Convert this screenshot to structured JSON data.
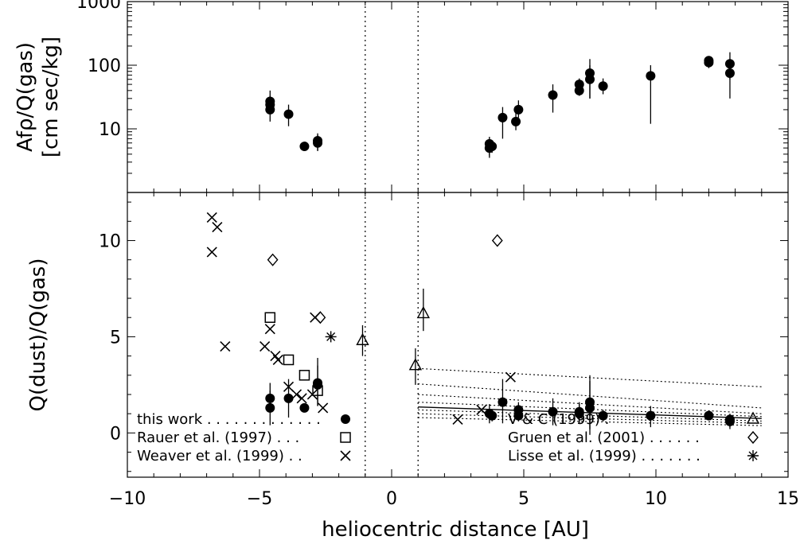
{
  "chart_data": [
    {
      "panel": "top",
      "type": "scatter",
      "xlabel": "",
      "ylabel": [
        "Afρ/Q(gas)",
        "[cm sec/kg]"
      ],
      "xlim": [
        -10,
        15
      ],
      "ylim": [
        1,
        1000
      ],
      "yscale": "log",
      "yticks": [
        {
          "v": 10,
          "label": "10"
        },
        {
          "v": 100,
          "label": "100"
        },
        {
          "v": 1000,
          "label": "1000"
        }
      ],
      "series": [
        {
          "marker": "filled-circle",
          "points": [
            {
              "x": -4.6,
              "y": 27,
              "lo": 19,
              "hi": 40
            },
            {
              "x": -4.6,
              "y": 24,
              "lo": 17,
              "hi": 33
            },
            {
              "x": -4.6,
              "y": 20,
              "lo": 13,
              "hi": 30
            },
            {
              "x": -3.9,
              "y": 17,
              "lo": 11,
              "hi": 24
            },
            {
              "x": -3.3,
              "y": 5.3,
              "lo": 5.0,
              "hi": 5.7
            },
            {
              "x": -2.8,
              "y": 6.5,
              "lo": 4.5,
              "hi": 8.5
            },
            {
              "x": -2.8,
              "y": 6.0,
              "lo": 4.5,
              "hi": 8.0
            },
            {
              "x": 3.7,
              "y": 5.8,
              "lo": 3.5,
              "hi": 7.5
            },
            {
              "x": 3.8,
              "y": 5.3,
              "lo": 4.2,
              "hi": 6.5
            },
            {
              "x": 3.7,
              "y": 5.0,
              "lo": 3.8,
              "hi": 6.5
            },
            {
              "x": 4.2,
              "y": 15,
              "lo": 7,
              "hi": 22
            },
            {
              "x": 4.8,
              "y": 20,
              "lo": 15,
              "hi": 28
            },
            {
              "x": 4.7,
              "y": 13,
              "lo": 9.5,
              "hi": 18
            },
            {
              "x": 6.1,
              "y": 34,
              "lo": 18,
              "hi": 50
            },
            {
              "x": 7.1,
              "y": 50,
              "lo": 37,
              "hi": 62
            },
            {
              "x": 7.1,
              "y": 40,
              "lo": 33,
              "hi": 55
            },
            {
              "x": 7.5,
              "y": 75,
              "lo": 30,
              "hi": 125
            },
            {
              "x": 7.5,
              "y": 60,
              "lo": 30,
              "hi": 100
            },
            {
              "x": 8.0,
              "y": 47,
              "lo": 35,
              "hi": 62
            },
            {
              "x": 9.8,
              "y": 68,
              "lo": 12,
              "hi": 100
            },
            {
              "x": 12.0,
              "y": 118,
              "lo": 95,
              "hi": 135
            },
            {
              "x": 12.0,
              "y": 110,
              "lo": 90,
              "hi": 125
            },
            {
              "x": 12.8,
              "y": 105,
              "lo": 60,
              "hi": 160
            },
            {
              "x": 12.8,
              "y": 75,
              "lo": 30,
              "hi": 125
            }
          ]
        }
      ],
      "vlines": [
        -1,
        1
      ]
    },
    {
      "panel": "bottom",
      "type": "scatter",
      "xlabel": "heliocentric distance [AU]",
      "ylabel": [
        "Q(dust)/Q(gas)"
      ],
      "xlim": [
        -10,
        15
      ],
      "ylim": [
        -2.3,
        12.5
      ],
      "xticks": [
        {
          "v": -10,
          "label": "−10"
        },
        {
          "v": -5,
          "label": "−5"
        },
        {
          "v": 0,
          "label": "0"
        },
        {
          "v": 5,
          "label": "5"
        },
        {
          "v": 10,
          "label": "10"
        },
        {
          "v": 15,
          "label": "15"
        }
      ],
      "yticks": [
        {
          "v": 0,
          "label": "0"
        },
        {
          "v": 5,
          "label": "5"
        },
        {
          "v": 10,
          "label": "10"
        }
      ],
      "series": [
        {
          "name": "this work",
          "marker": "filled-circle",
          "points": [
            {
              "x": -4.6,
              "y": 1.8,
              "lo": 1.1,
              "hi": 2.6
            },
            {
              "x": -4.6,
              "y": 1.3,
              "lo": 0.4,
              "hi": 2.2
            },
            {
              "x": -3.9,
              "y": 1.8,
              "lo": 0.8,
              "hi": 2.8
            },
            {
              "x": -3.3,
              "y": 1.3,
              "lo": 1.2,
              "hi": 1.4
            },
            {
              "x": -2.8,
              "y": 2.6,
              "lo": 1.4,
              "hi": 3.9
            },
            {
              "x": -2.8,
              "y": 2.5,
              "lo": 1.4,
              "hi": 3.5
            },
            {
              "x": 3.7,
              "y": 1.0,
              "lo": 0.5,
              "hi": 1.5
            },
            {
              "x": 3.8,
              "y": 0.9,
              "lo": 0.6,
              "hi": 1.2
            },
            {
              "x": 4.2,
              "y": 1.6,
              "lo": 0.5,
              "hi": 2.8
            },
            {
              "x": 4.8,
              "y": 1.2,
              "lo": 0.7,
              "hi": 1.6
            },
            {
              "x": 4.8,
              "y": 0.9,
              "lo": 0.6,
              "hi": 1.2
            },
            {
              "x": 6.1,
              "y": 1.1,
              "lo": 0.4,
              "hi": 1.8
            },
            {
              "x": 7.1,
              "y": 1.1,
              "lo": 0.6,
              "hi": 1.6
            },
            {
              "x": 7.1,
              "y": 1.0,
              "lo": 0.5,
              "hi": 1.5
            },
            {
              "x": 7.5,
              "y": 1.6,
              "lo": 0.2,
              "hi": 3.0
            },
            {
              "x": 7.5,
              "y": 1.3,
              "lo": -0.1,
              "hi": 2.7
            },
            {
              "x": 8.0,
              "y": 0.9,
              "lo": 0.6,
              "hi": 1.2
            },
            {
              "x": 9.8,
              "y": 0.9,
              "lo": 0.3,
              "hi": 1.4
            },
            {
              "x": 12.0,
              "y": 0.9,
              "lo": 0.7,
              "hi": 1.1
            },
            {
              "x": 12.8,
              "y": 0.7,
              "lo": 0.3,
              "hi": 1.0
            },
            {
              "x": 12.8,
              "y": 0.6,
              "lo": 0.2,
              "hi": 0.9
            }
          ]
        },
        {
          "name": "Rauer et al. (1997)",
          "marker": "open-square",
          "points": [
            {
              "x": -4.6,
              "y": 6.0
            },
            {
              "x": -3.9,
              "y": 3.8
            },
            {
              "x": -3.3,
              "y": 3.0
            },
            {
              "x": -2.8,
              "y": 2.2
            }
          ]
        },
        {
          "name": "Weaver et al. (1999)",
          "marker": "x",
          "points": [
            {
              "x": -6.8,
              "y": 11.2
            },
            {
              "x": -6.6,
              "y": 10.7
            },
            {
              "x": -6.8,
              "y": 9.4
            },
            {
              "x": -6.3,
              "y": 4.5
            },
            {
              "x": -4.6,
              "y": 5.4
            },
            {
              "x": -4.8,
              "y": 4.5
            },
            {
              "x": -4.4,
              "y": 4.0
            },
            {
              "x": -4.3,
              "y": 3.8
            },
            {
              "x": -3.9,
              "y": 2.4
            },
            {
              "x": -3.6,
              "y": 2.0
            },
            {
              "x": -3.4,
              "y": 1.8
            },
            {
              "x": -3.0,
              "y": 2.0
            },
            {
              "x": -2.9,
              "y": 6.0
            },
            {
              "x": -2.6,
              "y": 1.3
            },
            {
              "x": 2.5,
              "y": 0.7
            },
            {
              "x": 3.4,
              "y": 1.2
            },
            {
              "x": 4.5,
              "y": 2.9
            }
          ]
        },
        {
          "name": "V & C (1999)",
          "marker": "open-triangle",
          "points": [
            {
              "x": -1.1,
              "y": 4.8,
              "lo": 4.0,
              "hi": 5.6
            },
            {
              "x": 0.9,
              "y": 3.5,
              "lo": 2.5,
              "hi": 4.4
            },
            {
              "x": 1.2,
              "y": 6.2,
              "lo": 5.3,
              "hi": 7.5
            }
          ]
        },
        {
          "name": "Gruen et al. (2001)",
          "marker": "open-diamond",
          "points": [
            {
              "x": -4.5,
              "y": 9.0
            },
            {
              "x": -2.7,
              "y": 6.0
            },
            {
              "x": 4.0,
              "y": 10.0
            }
          ]
        },
        {
          "name": "Lisse et al. (1999)",
          "marker": "asterisk",
          "points": [
            {
              "x": -2.3,
              "y": 5.0
            }
          ]
        }
      ],
      "trend_lines": [
        {
          "style": "solid",
          "x": [
            1,
            14
          ],
          "y": [
            1.35,
            0.75
          ]
        },
        {
          "style": "dotted",
          "x": [
            1,
            14
          ],
          "y": [
            3.35,
            2.4
          ]
        },
        {
          "style": "dotted",
          "x": [
            1,
            14
          ],
          "y": [
            2.55,
            1.3
          ]
        },
        {
          "style": "dotted",
          "x": [
            1,
            14
          ],
          "y": [
            2.0,
            1.0
          ]
        },
        {
          "style": "dotted",
          "x": [
            1,
            14
          ],
          "y": [
            1.6,
            0.85
          ]
        },
        {
          "style": "dotted",
          "x": [
            1,
            14
          ],
          "y": [
            1.2,
            0.62
          ]
        },
        {
          "style": "dotted",
          "x": [
            1,
            14
          ],
          "y": [
            1.0,
            0.5
          ]
        },
        {
          "style": "dotted",
          "x": [
            1,
            14
          ],
          "y": [
            0.8,
            0.38
          ]
        }
      ],
      "vlines": [
        -1,
        1
      ],
      "legend": {
        "left": [
          {
            "label": "this work . . . . . . . . . . . . .",
            "marker": "filled-circle"
          },
          {
            "label": "Rauer et al. (1997) . . .",
            "marker": "open-square"
          },
          {
            "label": "Weaver et al. (1999) . .",
            "marker": "x"
          }
        ],
        "right": [
          {
            "label": "V & C (1999) .",
            "marker": "open-triangle"
          },
          {
            "label": "Gruen et al. (2001) . . . . . .",
            "marker": "open-diamond"
          },
          {
            "label": "Lisse et al. (1999) . . . . . . .",
            "marker": "asterisk"
          }
        ]
      }
    }
  ]
}
